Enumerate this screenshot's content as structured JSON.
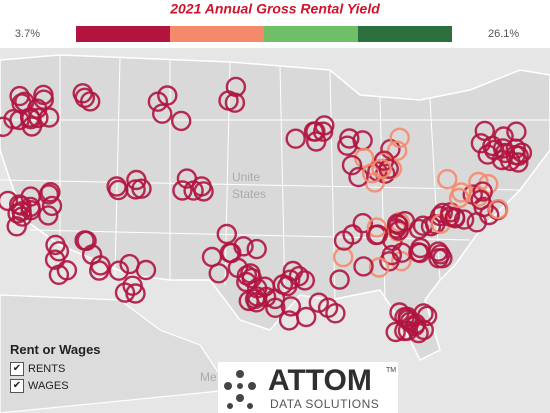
{
  "title": "2021 Annual Gross Rental Yield",
  "legend": {
    "min_label": "3.7%",
    "max_label": "26.1%",
    "colors": [
      "#b0143f",
      "#f4896b",
      "#6fbf69",
      "#2b6f3f"
    ]
  },
  "map_labels": [
    "Unite",
    "States",
    "Me"
  ],
  "filter": {
    "title": "Rent or Wages",
    "options": [
      "RENTS",
      "WAGES"
    ]
  },
  "logo": {
    "name": "ATTOM",
    "mark": "TM",
    "tagline": "DATA SOLUTIONS"
  }
}
